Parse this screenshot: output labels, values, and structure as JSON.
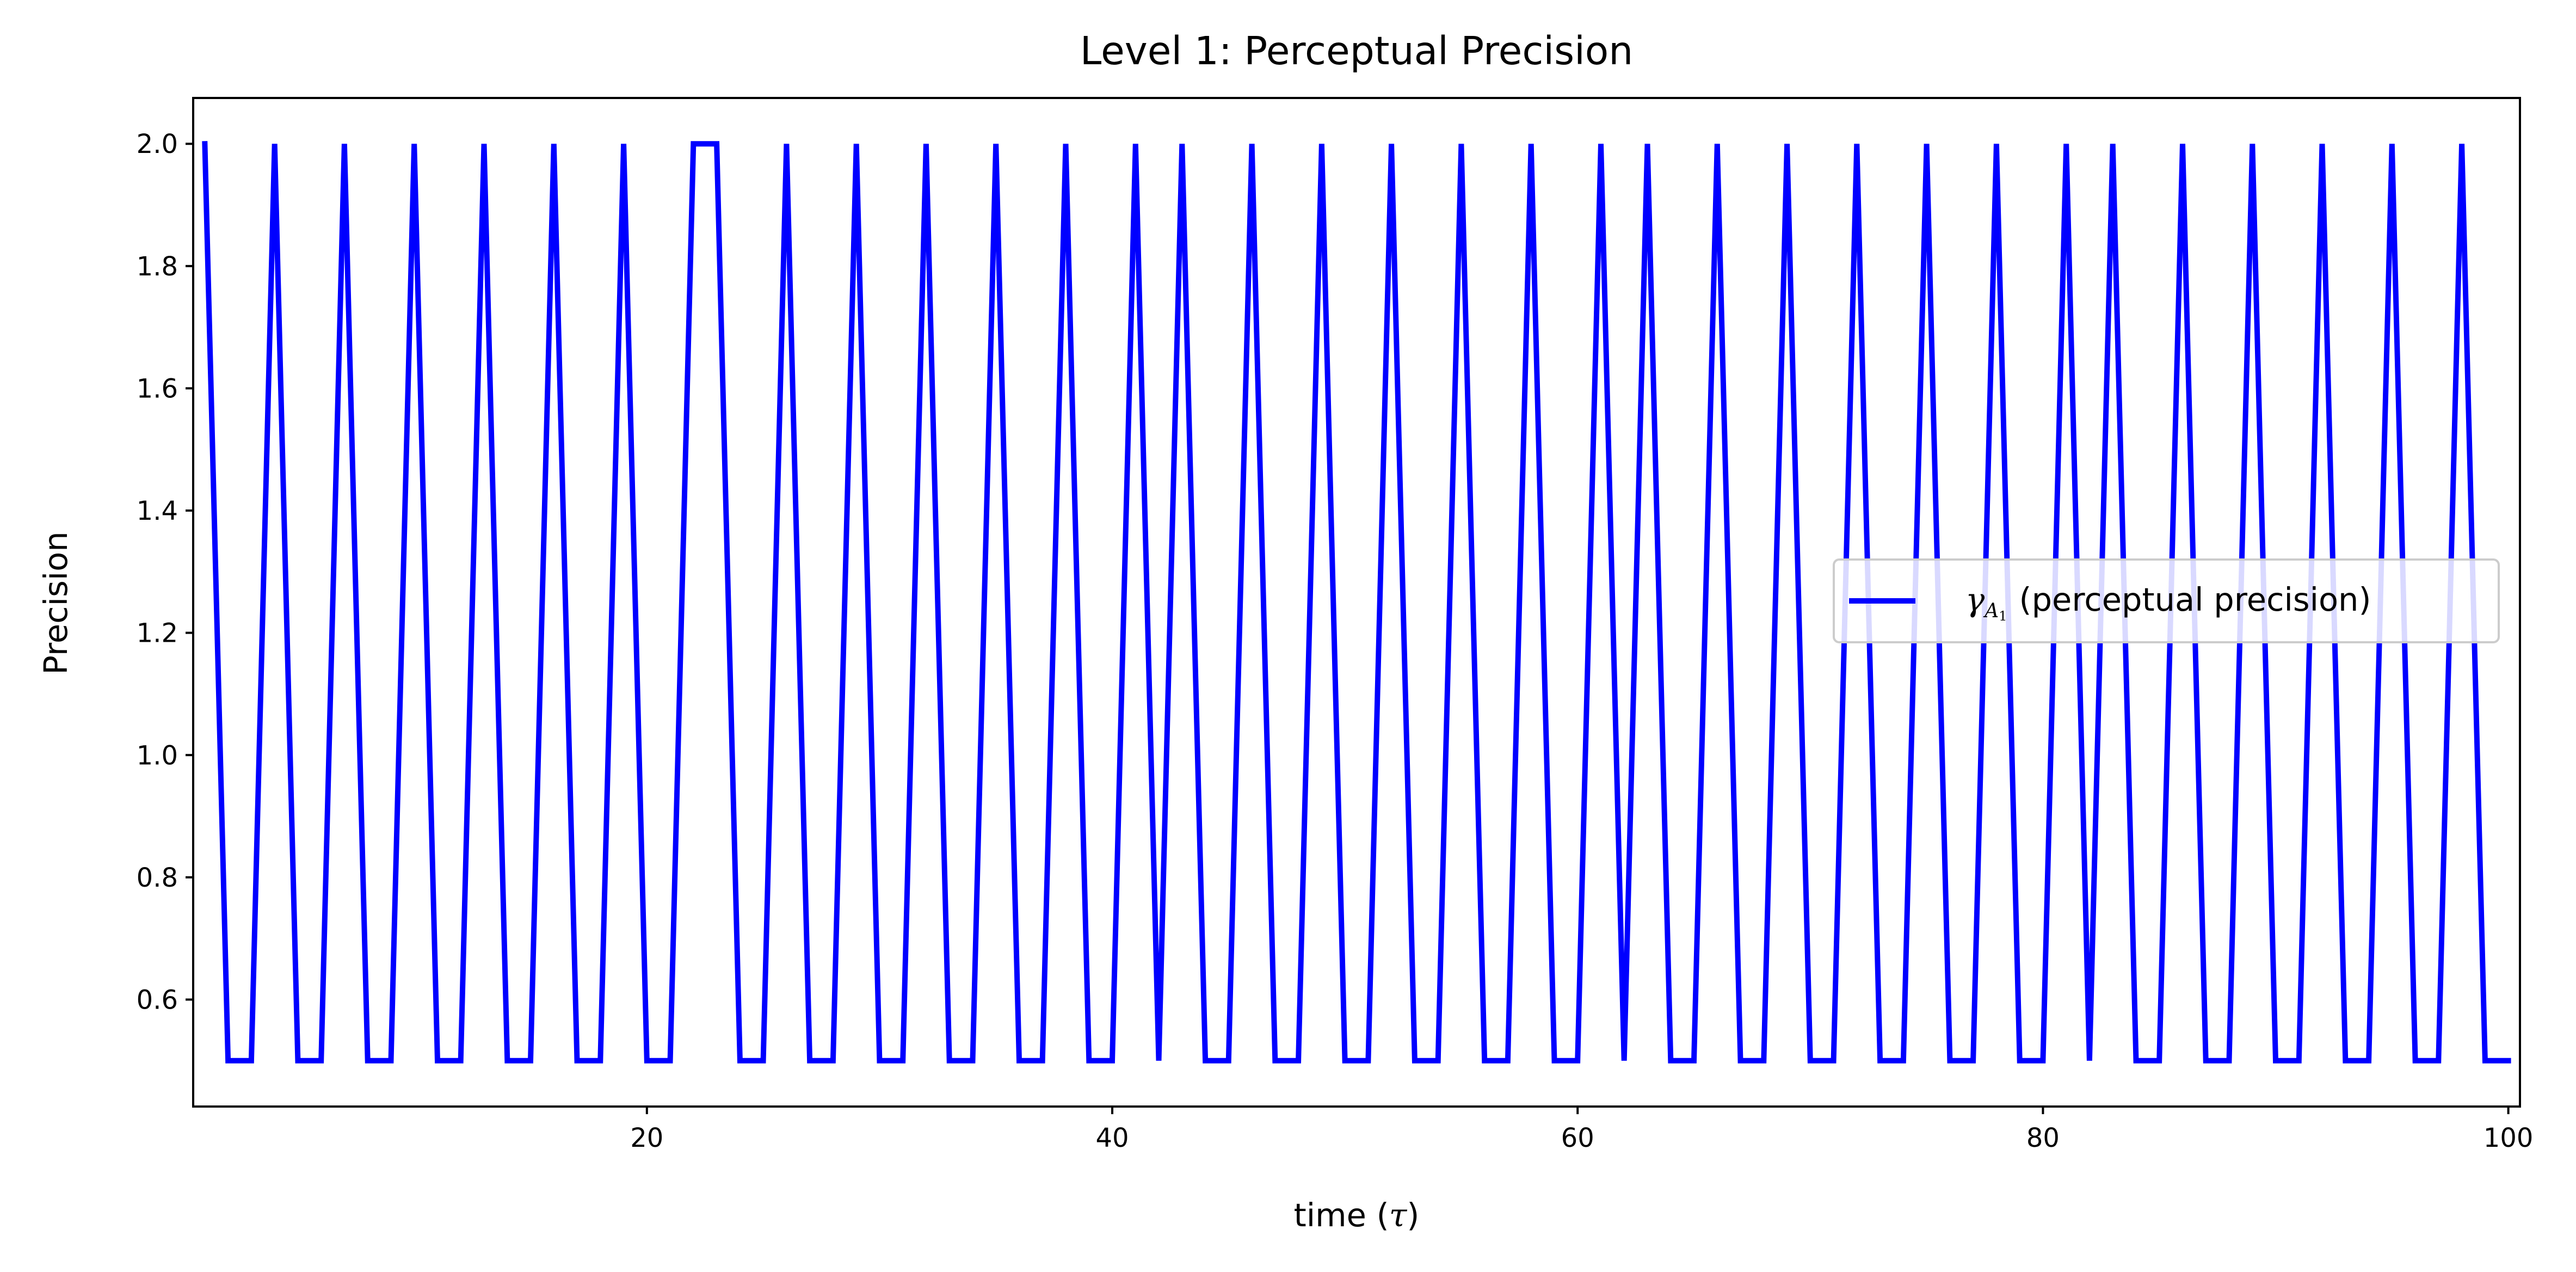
{
  "chart_data": {
    "type": "line",
    "title": "Level 1: Perceptual Precision",
    "xlabel_prefix": "time (",
    "xlabel_symbol": "τ",
    "xlabel_suffix": ")",
    "ylabel": "Precision",
    "xlim": [
      0.5,
      100.5
    ],
    "ylim": [
      0.425,
      2.075
    ],
    "xticks": [
      20,
      40,
      60,
      80,
      100
    ],
    "yticks": [
      0.6,
      0.8,
      1.0,
      1.2,
      1.4,
      1.6,
      1.8,
      2.0
    ],
    "xtick_labels": [
      "20",
      "40",
      "60",
      "80",
      "100"
    ],
    "ytick_labels": [
      "0.6",
      "0.8",
      "1.0",
      "1.2",
      "1.4",
      "1.6",
      "1.8",
      "2.0"
    ],
    "legend": {
      "symbol": "γ",
      "subscript": "A",
      "subsubscript": "1",
      "label": "(perceptual precision)",
      "position": "center-right"
    },
    "series": [
      {
        "name": "γ_A1 (perceptual precision)",
        "color": "#0000ff",
        "x": [
          1,
          2,
          3,
          4,
          5,
          6,
          7,
          8,
          9,
          10,
          11,
          12,
          13,
          14,
          15,
          16,
          17,
          18,
          19,
          20,
          21,
          22,
          23,
          24,
          25,
          26,
          27,
          28,
          29,
          30,
          31,
          32,
          33,
          34,
          35,
          36,
          37,
          38,
          39,
          40,
          41,
          42,
          43,
          44,
          45,
          46,
          47,
          48,
          49,
          50,
          51,
          52,
          53,
          54,
          55,
          56,
          57,
          58,
          59,
          60,
          61,
          62,
          63,
          64,
          65,
          66,
          67,
          68,
          69,
          70,
          71,
          72,
          73,
          74,
          75,
          76,
          77,
          78,
          79,
          80,
          81,
          82,
          83,
          84,
          85,
          86,
          87,
          88,
          89,
          90,
          91,
          92,
          93,
          94,
          95,
          96,
          97,
          98,
          99,
          100
        ],
        "y": [
          2.0,
          0.5,
          0.5,
          2.0,
          0.5,
          0.5,
          2.0,
          0.5,
          0.5,
          2.0,
          0.5,
          0.5,
          2.0,
          0.5,
          0.5,
          2.0,
          0.5,
          0.5,
          2.0,
          0.5,
          0.5,
          2.0,
          2.0,
          0.5,
          0.5,
          2.0,
          0.5,
          0.5,
          2.0,
          0.5,
          0.5,
          2.0,
          0.5,
          0.5,
          2.0,
          0.5,
          0.5,
          2.0,
          0.5,
          0.5,
          2.0,
          0.5,
          2.0,
          0.5,
          0.5,
          2.0,
          0.5,
          0.5,
          2.0,
          0.5,
          0.5,
          2.0,
          0.5,
          0.5,
          2.0,
          0.5,
          0.5,
          2.0,
          0.5,
          0.5,
          2.0,
          0.5,
          2.0,
          0.5,
          0.5,
          2.0,
          0.5,
          0.5,
          2.0,
          0.5,
          0.5,
          2.0,
          0.5,
          0.5,
          2.0,
          0.5,
          0.5,
          2.0,
          0.5,
          0.5,
          2.0,
          0.5,
          2.0,
          0.5,
          0.5,
          2.0,
          0.5,
          0.5,
          2.0,
          0.5,
          0.5,
          2.0,
          0.5,
          0.5,
          2.0,
          0.5,
          0.5,
          2.0,
          0.5,
          0.5
        ]
      }
    ]
  }
}
